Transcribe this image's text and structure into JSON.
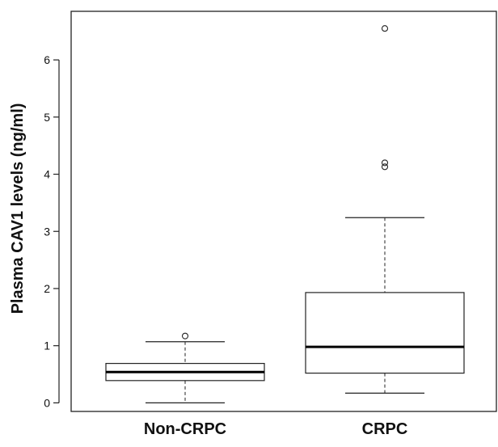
{
  "chart_data": {
    "type": "boxplot",
    "ylabel": "Plasma CAV1 levels  (ng/ml)",
    "xlabel": "",
    "ylim": [
      -0.15,
      6.85
    ],
    "yticks": [
      0,
      1,
      2,
      3,
      4,
      5,
      6
    ],
    "ytick_labels": [
      "0",
      "1",
      "2",
      "3",
      "4",
      "5",
      "6"
    ],
    "categories": [
      "Non-CRPC",
      "CRPC"
    ],
    "boxes": [
      {
        "category": "Non-CRPC",
        "whisker_low": 0.0,
        "q1": 0.39,
        "median": 0.54,
        "q3": 0.69,
        "whisker_high": 1.07,
        "outliers": [
          1.17
        ]
      },
      {
        "category": "CRPC",
        "whisker_low": 0.17,
        "q1": 0.52,
        "median": 0.98,
        "q3": 1.93,
        "whisker_high": 3.24,
        "outliers": [
          4.13,
          4.2,
          6.55
        ]
      }
    ],
    "grid": false,
    "legend": "none",
    "colors": {
      "box_fill": "#ffffff",
      "stroke": "#222222",
      "median": "#000000"
    }
  }
}
